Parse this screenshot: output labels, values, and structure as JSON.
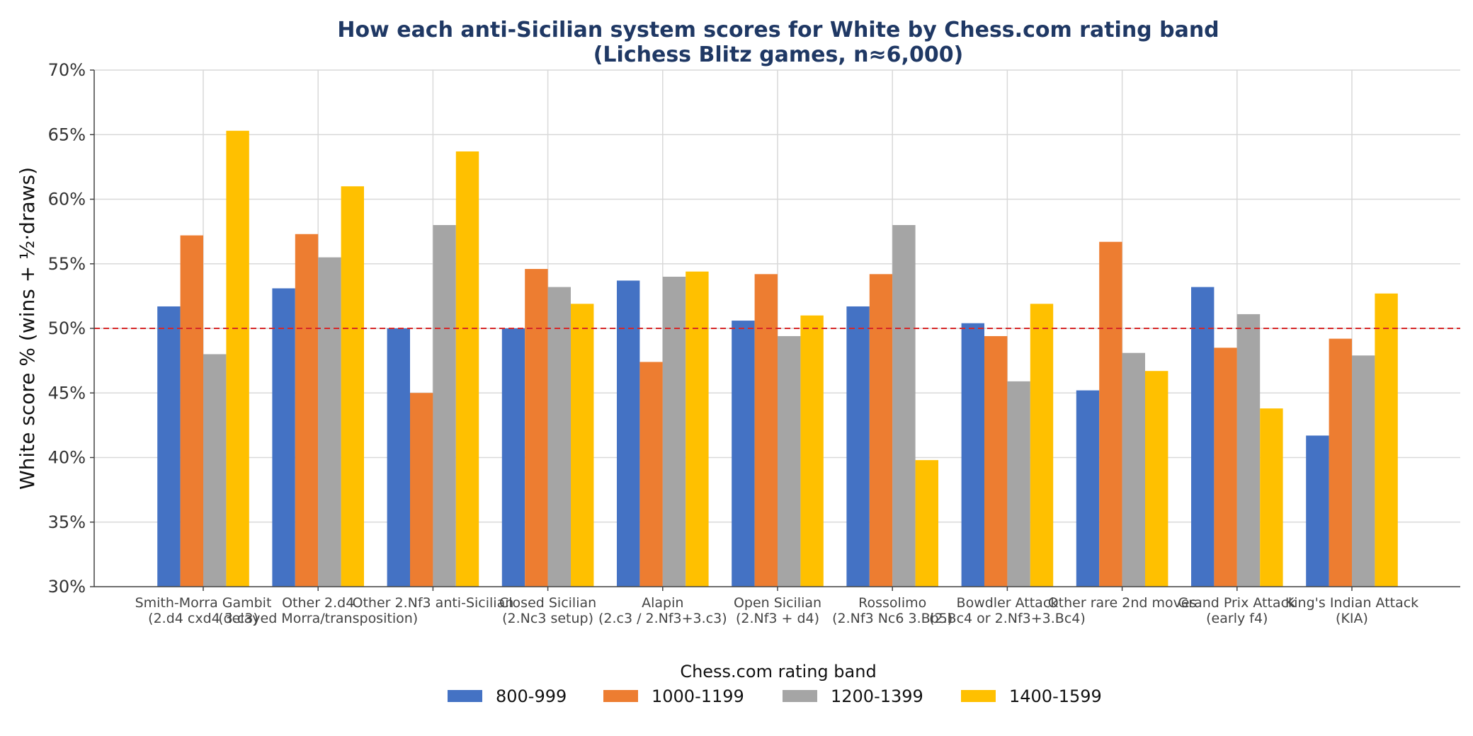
{
  "chart_data": {
    "type": "bar",
    "title_lines": [
      "How each anti-Sicilian system scores for White by Chess.com rating band",
      "(Lichess Blitz games, n≈6,000)"
    ],
    "ylabel": "White score % (wins + ½·draws)",
    "ylim": [
      30,
      70
    ],
    "yticks": [
      30,
      35,
      40,
      45,
      50,
      55,
      60,
      65,
      70
    ],
    "ytick_labels": [
      "30%",
      "35%",
      "40%",
      "45%",
      "50%",
      "55%",
      "60%",
      "65%",
      "70%"
    ],
    "reference_line": {
      "value": 50,
      "style": "dashed",
      "color": "#d62728"
    },
    "grid": true,
    "categories": [
      [
        "Smith-Morra Gambit",
        "(2.d4 cxd4 3.c3)"
      ],
      [
        "Other 2.d4",
        "(delayed Morra/transposition)"
      ],
      [
        "Other 2.Nf3 anti-Sicilian"
      ],
      [
        "Closed Sicilian",
        "(2.Nc3 setup)"
      ],
      [
        "Alapin",
        "(2.c3 / 2.Nf3+3.c3)"
      ],
      [
        "Open Sicilian",
        "(2.Nf3 + d4)"
      ],
      [
        "Rossolimo",
        "(2.Nf3 Nc6 3.Bb5)"
      ],
      [
        "Bowdler Attack",
        "(2.Bc4 or 2.Nf3+3.Bc4)"
      ],
      [
        "Other rare 2nd moves"
      ],
      [
        "Grand Prix Attack",
        "(early f4)"
      ],
      [
        "King's Indian Attack",
        "(KIA)"
      ]
    ],
    "series": [
      {
        "name": "800-999",
        "color": "#4472c4",
        "values": [
          51.7,
          53.1,
          50.0,
          50.0,
          53.7,
          50.6,
          51.7,
          50.4,
          45.2,
          53.2,
          41.7
        ]
      },
      {
        "name": "1000-1199",
        "color": "#ed7d31",
        "values": [
          57.2,
          57.3,
          45.0,
          54.6,
          47.4,
          54.2,
          54.2,
          49.4,
          56.7,
          48.5,
          49.2
        ]
      },
      {
        "name": "1200-1399",
        "color": "#a5a5a5",
        "values": [
          48.0,
          55.5,
          58.0,
          53.2,
          54.0,
          49.4,
          58.0,
          45.9,
          48.1,
          51.1,
          47.9
        ]
      },
      {
        "name": "1400-1599",
        "color": "#ffc000",
        "values": [
          65.3,
          61.0,
          63.7,
          51.9,
          54.4,
          51.0,
          39.8,
          51.9,
          46.7,
          43.8,
          52.7
        ]
      }
    ],
    "legend": {
      "title": "Chess.com rating band",
      "position": "bottom-center"
    }
  }
}
